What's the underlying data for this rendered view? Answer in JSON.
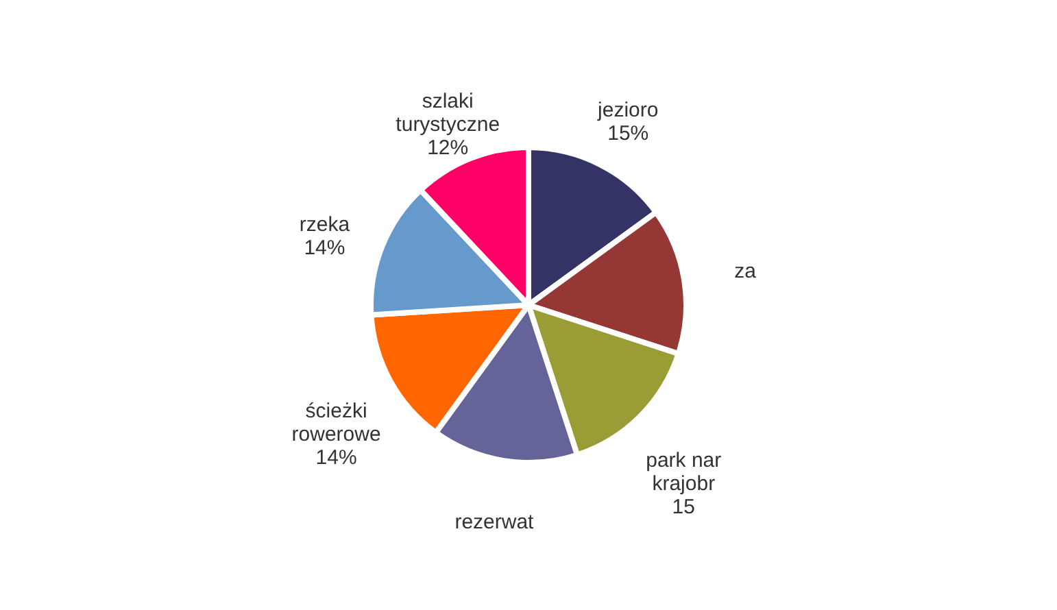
{
  "chart_data": {
    "type": "pie",
    "categories": [
      "jezioro",
      "za",
      "park nar krajobr",
      "rezerwat",
      "ścieżki rowerowe",
      "rzeka",
      "szlaki turystyczne"
    ],
    "values": [
      15,
      15,
      15,
      15,
      14,
      14,
      12
    ],
    "colors": [
      "#333366",
      "#953735",
      "#9a9d36",
      "#646499",
      "#ff6600",
      "#6699cc",
      "#ff0066"
    ],
    "value_labels": [
      "15%",
      null,
      "15",
      null,
      "14%",
      "14%",
      "12%"
    ],
    "legend": false
  }
}
